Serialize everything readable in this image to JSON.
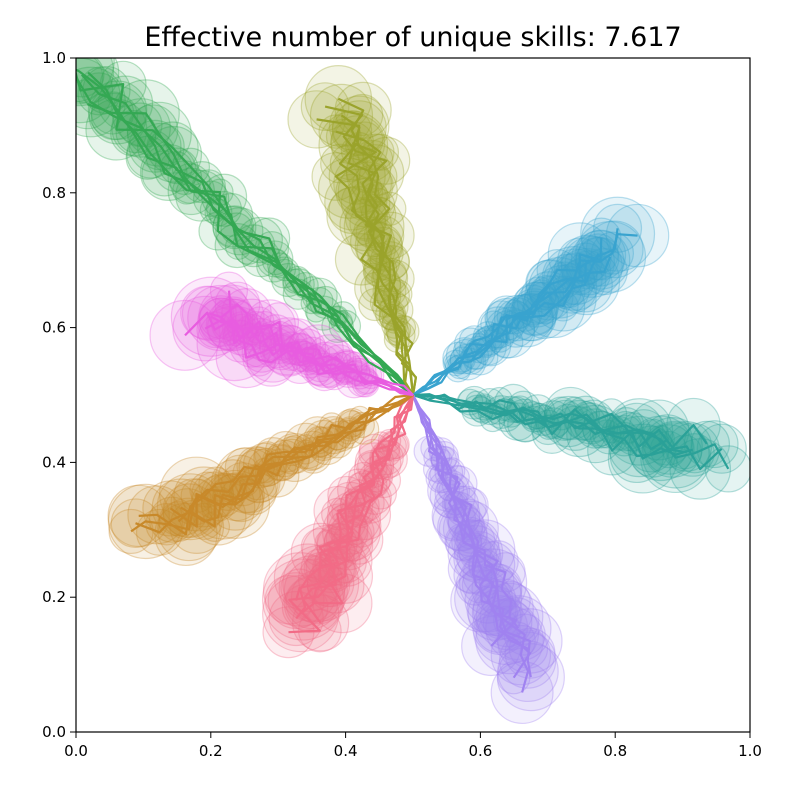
{
  "chart_data": {
    "type": "line",
    "title": "Effective number of unique skills: 7.617",
    "xlabel": "",
    "ylabel": "",
    "xlim": [
      0.0,
      1.0
    ],
    "ylim": [
      0.0,
      1.0
    ],
    "grid": false,
    "legend": "none",
    "x_ticks": [
      "0.0",
      "0.2",
      "0.4",
      "0.6",
      "0.8",
      "1.0"
    ],
    "y_ticks": [
      "0.0",
      "0.2",
      "0.4",
      "0.6",
      "0.8",
      "1.0"
    ],
    "origin": [
      0.5,
      0.5
    ],
    "series": [
      {
        "color": "#34a853",
        "endpoint": [
          0.02,
          0.96
        ],
        "trajectories": 6,
        "spread": 0.04
      },
      {
        "color": "#9aa32b",
        "endpoint": [
          0.4,
          0.92
        ],
        "trajectories": 6,
        "spread": 0.045
      },
      {
        "color": "#38a3cf",
        "endpoint": [
          0.82,
          0.73
        ],
        "trajectories": 6,
        "spread": 0.03
      },
      {
        "color": "#2aa198",
        "endpoint": [
          0.93,
          0.42
        ],
        "trajectories": 6,
        "spread": 0.04
      },
      {
        "color": "#a082f0",
        "endpoint": [
          0.66,
          0.1
        ],
        "trajectories": 6,
        "spread": 0.035
      },
      {
        "color": "#f26b86",
        "endpoint": [
          0.34,
          0.16
        ],
        "trajectories": 6,
        "spread": 0.045
      },
      {
        "color": "#c8892a",
        "endpoint": [
          0.12,
          0.3
        ],
        "trajectories": 6,
        "spread": 0.035
      },
      {
        "color": "#e85ce0",
        "endpoint": [
          0.2,
          0.61
        ],
        "trajectories": 6,
        "spread": 0.035
      }
    ]
  }
}
